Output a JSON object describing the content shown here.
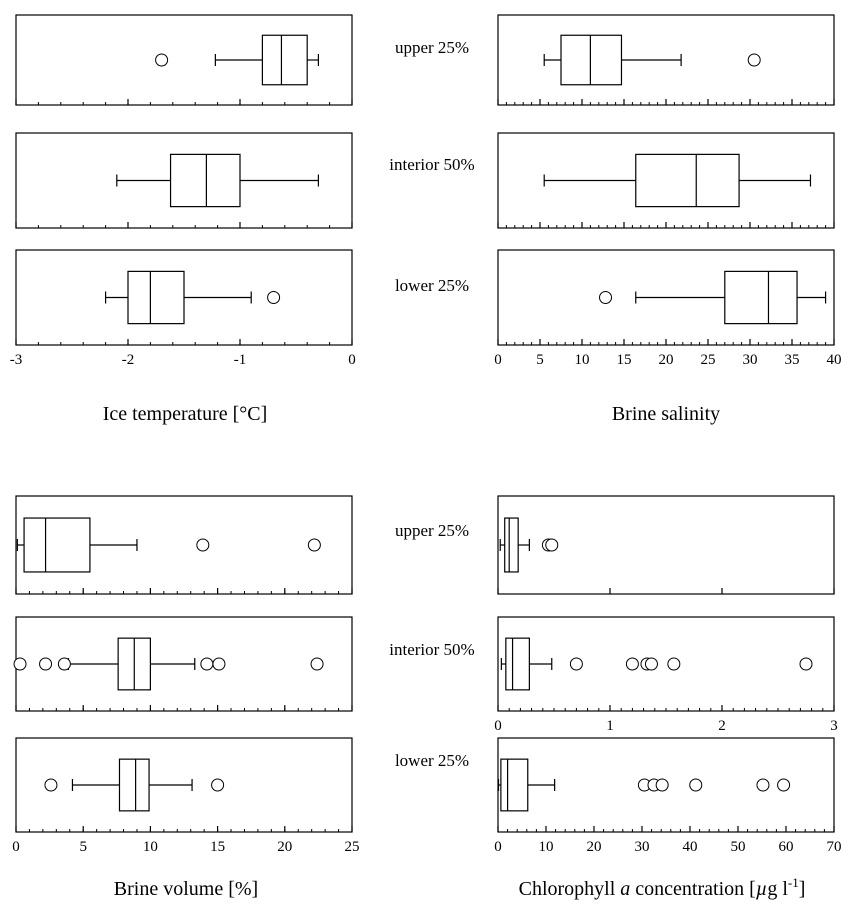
{
  "chart_data": [
    {
      "type": "boxplot",
      "xlabel": "Ice temperature [°C]",
      "xlim": [
        -3,
        0
      ],
      "xticks": [
        "-3",
        "-2",
        "-1",
        "0"
      ],
      "minor_step": 0.2,
      "groups": [
        {
          "label": "upper 25%",
          "whisker_low": -1.22,
          "q1": -0.8,
          "median": -0.63,
          "q3": -0.4,
          "whisker_high": -0.3,
          "outliers": [
            -1.7
          ]
        },
        {
          "label": "interior 50%",
          "whisker_low": -2.1,
          "q1": -1.62,
          "median": -1.3,
          "q3": -1.0,
          "whisker_high": -0.3,
          "outliers": []
        },
        {
          "label": "lower 25%",
          "whisker_low": -2.2,
          "q1": -2.0,
          "median": -1.8,
          "q3": -1.5,
          "whisker_high": -0.9,
          "outliers": [
            -0.7
          ]
        }
      ]
    },
    {
      "type": "boxplot",
      "xlabel": "Brine salinity",
      "xlim": [
        0,
        40
      ],
      "xticks": [
        "0",
        "5",
        "10",
        "15",
        "20",
        "25",
        "30",
        "35",
        "40"
      ],
      "minor_step": 1,
      "groups": [
        {
          "label": "upper 25%",
          "whisker_low": 5.5,
          "q1": 7.5,
          "median": 11,
          "q3": 14.7,
          "whisker_high": 21.8,
          "outliers": [
            30.5
          ]
        },
        {
          "label": "interior 50%",
          "whisker_low": 5.5,
          "q1": 16.4,
          "median": 23.6,
          "q3": 28.7,
          "whisker_high": 37.2,
          "outliers": []
        },
        {
          "label": "lower 25%",
          "whisker_low": 16.4,
          "q1": 27.0,
          "median": 32.2,
          "q3": 35.6,
          "whisker_high": 39.0,
          "outliers": [
            12.8
          ]
        }
      ]
    },
    {
      "type": "boxplot",
      "xlabel": "Brine volume [%]",
      "xlim": [
        0,
        25
      ],
      "xticks": [
        "0",
        "5",
        "10",
        "15",
        "20",
        "25"
      ],
      "minor_step": 1,
      "groups": [
        {
          "label": "upper 25%",
          "whisker_low": 0.1,
          "q1": 0.6,
          "median": 2.2,
          "q3": 5.5,
          "whisker_high": 9.0,
          "outliers": [
            13.9,
            22.2
          ]
        },
        {
          "label": "interior 50%",
          "whisker_low": 3.9,
          "q1": 7.6,
          "median": 8.8,
          "q3": 10.0,
          "whisker_high": 13.3,
          "outliers": [
            0.3,
            2.2,
            3.6,
            14.2,
            15.1,
            22.4
          ]
        },
        {
          "label": "lower 25%",
          "whisker_low": 4.2,
          "q1": 7.7,
          "median": 8.9,
          "q3": 9.9,
          "whisker_high": 13.1,
          "outliers": [
            2.6,
            15.0
          ]
        }
      ]
    },
    {
      "type": "boxplot",
      "xlabel_prefix": "Chlorophyll ",
      "xlabel_italic": "a",
      "xlabel_middle": " concentration [",
      "xlabel_mu": "µ",
      "xlabel_unit": "g l",
      "xlabel_sup": "-1",
      "xlabel_end": "]",
      "panels": [
        {
          "label": "upper 25%",
          "xlim": [
            0,
            3
          ],
          "xticks": [],
          "whisker_low": 0.02,
          "q1": 0.06,
          "median": 0.1,
          "q3": 0.18,
          "whisker_high": 0.28,
          "outliers": [
            0.45,
            0.48
          ]
        },
        {
          "label": "interior 50%",
          "xlim": [
            0,
            3
          ],
          "xticks": [
            "0",
            "1",
            "2",
            "3"
          ],
          "whisker_low": 0.03,
          "q1": 0.07,
          "median": 0.13,
          "q3": 0.28,
          "whisker_high": 0.48,
          "outliers": [
            0.7,
            1.2,
            1.33,
            1.37,
            1.57,
            2.75
          ]
        },
        {
          "label": "lower 25%",
          "xlim": [
            0,
            70
          ],
          "xticks": [
            "0",
            "10",
            "20",
            "30",
            "40",
            "50",
            "60",
            "70"
          ],
          "whisker_low": 0.1,
          "q1": 0.6,
          "median": 2.0,
          "q3": 6.2,
          "whisker_high": 11.8,
          "outliers": [
            30.5,
            32.5,
            34.2,
            41.2,
            55.2,
            59.5
          ]
        }
      ]
    }
  ]
}
